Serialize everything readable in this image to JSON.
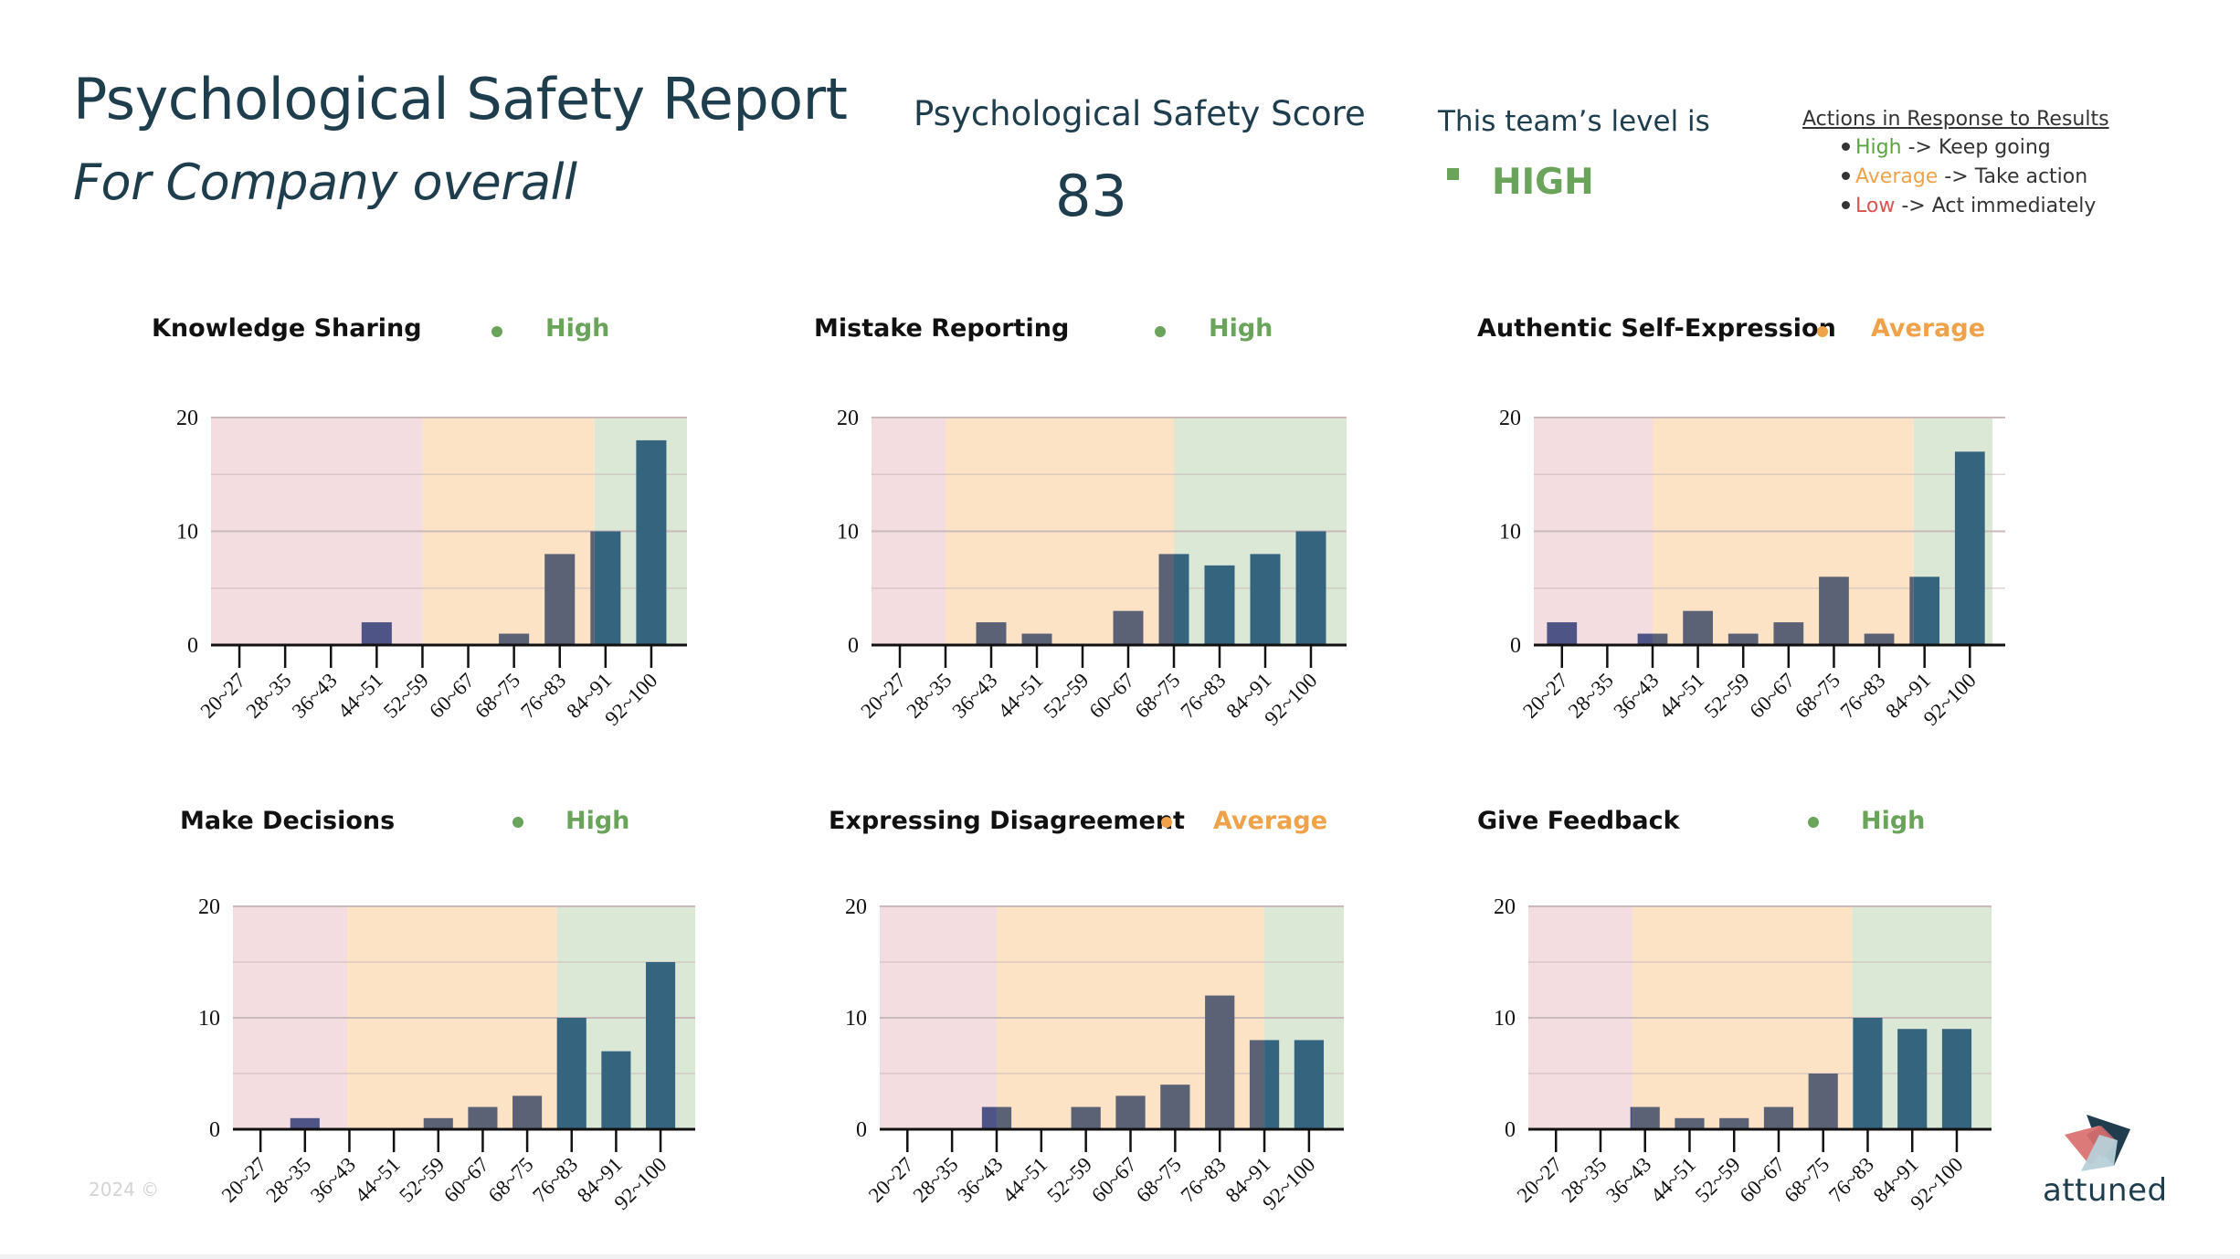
{
  "header": {
    "title": "Psychological Safety Report",
    "subtitle": "For Company overall",
    "score_label": "Psychological Safety Score",
    "score_value": "83",
    "level_label": "This team’s level is",
    "level_value": "HIGH",
    "level_color": "#6aa35a"
  },
  "actions": {
    "title": "Actions in Response to Results",
    "items": [
      {
        "level": "High",
        "arrow": " -> ",
        "action": "Keep going",
        "color": "#5aa341"
      },
      {
        "level": "Average",
        "arrow": " -> ",
        "action": "Take action",
        "color": "#f0a24a"
      },
      {
        "level": "Low",
        "arrow": " -> ",
        "action": "Act immediately",
        "color": "#d9534f"
      }
    ]
  },
  "colors": {
    "low_band": "#f3dde1",
    "average_band": "#fde3c6",
    "high_band": "#dbe8d6",
    "bar_high": "#35647f",
    "bar_average": "#5c6275",
    "bar_low": "#4f5487",
    "level_high": "#6aa35a",
    "level_average": "#f0a24a",
    "gridline": "#c9b9b9"
  },
  "chart_data": [
    {
      "type": "bar",
      "title": "Knowledge Sharing",
      "level": "High",
      "level_key": "high",
      "categories": [
        "20~27",
        "28~35",
        "36~43",
        "44~51",
        "52~59",
        "60~67",
        "68~75",
        "76~83",
        "84~91",
        "92~100"
      ],
      "values": [
        0,
        0,
        0,
        2,
        0,
        0,
        1,
        8,
        10,
        18
      ],
      "ylim": [
        0,
        20
      ],
      "yticks": [
        0,
        10,
        20
      ],
      "grid_minor": [
        5,
        15
      ],
      "bands": [
        {
          "level": "low",
          "from": -0.62,
          "to": 4.0
        },
        {
          "level": "average",
          "from": 4.0,
          "to": 7.76
        },
        {
          "level": "high",
          "from": 7.76,
          "to": 9.78
        }
      ]
    },
    {
      "type": "bar",
      "title": "Mistake Reporting",
      "level": "High",
      "level_key": "high",
      "categories": [
        "20~27",
        "28~35",
        "36~43",
        "44~51",
        "52~59",
        "60~67",
        "68~75",
        "76~83",
        "84~91",
        "92~100"
      ],
      "values": [
        0,
        0,
        2,
        1,
        0,
        3,
        8,
        7,
        8,
        10
      ],
      "ylim": [
        0,
        20
      ],
      "yticks": [
        0,
        10,
        20
      ],
      "grid_minor": [
        5,
        15
      ],
      "bands": [
        {
          "level": "low",
          "from": -0.62,
          "to": 1.0
        },
        {
          "level": "average",
          "from": 1.0,
          "to": 6.0
        },
        {
          "level": "high",
          "from": 6.0,
          "to": 9.78
        }
      ]
    },
    {
      "type": "bar",
      "title": "Authentic Self-Expression",
      "level": "Average",
      "level_key": "average",
      "categories": [
        "20~27",
        "28~35",
        "36~43",
        "44~51",
        "52~59",
        "60~67",
        "68~75",
        "76~83",
        "84~91",
        "92~100"
      ],
      "values": [
        2,
        0,
        1,
        3,
        1,
        2,
        6,
        1,
        6,
        17
      ],
      "ylim": [
        0,
        20
      ],
      "yticks": [
        0,
        10,
        20
      ],
      "grid_minor": [
        5,
        15
      ],
      "bands": [
        {
          "level": "low",
          "from": -0.62,
          "to": 2.0
        },
        {
          "level": "average",
          "from": 2.0,
          "to": 7.76
        },
        {
          "level": "high",
          "from": 7.76,
          "to": 9.5
        }
      ]
    },
    {
      "type": "bar",
      "title": "Make Decisions",
      "level": "High",
      "level_key": "high",
      "categories": [
        "20~27",
        "28~35",
        "36~43",
        "44~51",
        "52~59",
        "60~67",
        "68~75",
        "76~83",
        "84~91",
        "92~100"
      ],
      "values": [
        0,
        1,
        0,
        0,
        1,
        2,
        3,
        10,
        7,
        15
      ],
      "ylim": [
        0,
        20
      ],
      "yticks": [
        0,
        10,
        20
      ],
      "grid_minor": [
        5,
        15
      ],
      "bands": [
        {
          "level": "low",
          "from": -0.62,
          "to": 1.95
        },
        {
          "level": "average",
          "from": 1.95,
          "to": 6.67
        },
        {
          "level": "high",
          "from": 6.67,
          "to": 9.78
        }
      ]
    },
    {
      "type": "bar",
      "title": "Expressing Disagreement",
      "level": "Average",
      "level_key": "average",
      "categories": [
        "20~27",
        "28~35",
        "36~43",
        "44~51",
        "52~59",
        "60~67",
        "68~75",
        "76~83",
        "84~91",
        "92~100"
      ],
      "values": [
        0,
        0,
        2,
        0,
        2,
        3,
        4,
        12,
        8,
        8
      ],
      "ylim": [
        0,
        20
      ],
      "yticks": [
        0,
        10,
        20
      ],
      "grid_minor": [
        5,
        15
      ],
      "bands": [
        {
          "level": "low",
          "from": -0.62,
          "to": 2.0
        },
        {
          "level": "average",
          "from": 2.0,
          "to": 8.0
        },
        {
          "level": "high",
          "from": 8.0,
          "to": 9.78
        }
      ]
    },
    {
      "type": "bar",
      "title": "Give Feedback",
      "level": "High",
      "level_key": "high",
      "categories": [
        "20~27",
        "28~35",
        "36~43",
        "44~51",
        "52~59",
        "60~67",
        "68~75",
        "76~83",
        "84~91",
        "92~100"
      ],
      "values": [
        0,
        0,
        2,
        1,
        1,
        2,
        5,
        10,
        9,
        9
      ],
      "ylim": [
        0,
        20
      ],
      "yticks": [
        0,
        10,
        20
      ],
      "grid_minor": [
        5,
        15
      ],
      "bands": [
        {
          "level": "low",
          "from": -0.62,
          "to": 1.72
        },
        {
          "level": "average",
          "from": 1.72,
          "to": 6.65
        },
        {
          "level": "high",
          "from": 6.65,
          "to": 9.78
        }
      ]
    }
  ],
  "footer": {
    "copyright": "2024 ©",
    "brand": "attuned"
  }
}
